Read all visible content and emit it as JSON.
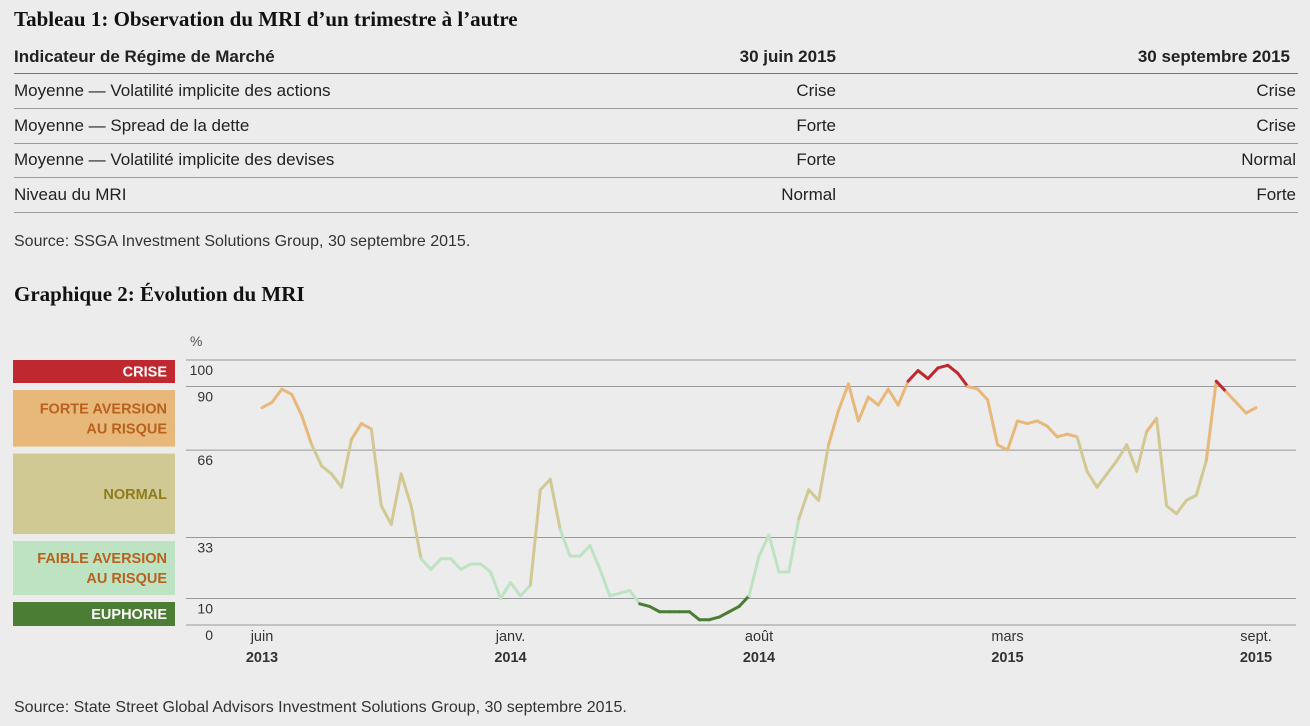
{
  "table": {
    "title": "Tableau 1: Observation du MRI d’un trimestre à l’autre",
    "header": [
      "Indicateur de Régime de Marché",
      "30 juin 2015",
      "30 septembre 2015"
    ],
    "rows": [
      [
        "Moyenne — Volatilité implicite des actions",
        "Crise",
        "Crise"
      ],
      [
        "Moyenne — Spread de la dette",
        "Forte",
        "Crise"
      ],
      [
        "Moyenne — Volatilité implicite des devises",
        "Forte",
        "Normal"
      ],
      [
        "Niveau du MRI",
        "Normal",
        "Forte"
      ]
    ],
    "source": "Source: SSGA Investment Solutions Group, 30 septembre 2015."
  },
  "chart_data": {
    "type": "line",
    "title": "Graphique 2: Évolution du MRI",
    "y_unit": "%",
    "ylim": [
      0,
      100
    ],
    "yticks": [
      0,
      10,
      33,
      66,
      90,
      100
    ],
    "regimes": [
      {
        "label": [
          "CRISE"
        ],
        "min": 90,
        "max": 100,
        "color": "#c0282f",
        "text_color": "#ffffff"
      },
      {
        "label": [
          "FORTE AVERSION",
          "AU RISQUE"
        ],
        "min": 66,
        "max": 90,
        "color": "#e8b87a",
        "text_color": "#b8621e"
      },
      {
        "label": [
          "NORMAL"
        ],
        "min": 33,
        "max": 66,
        "color": "#d1c993",
        "text_color": "#8c7c1c"
      },
      {
        "label": [
          "FAIBLE AVERSION",
          "AU RISQUE"
        ],
        "min": 10,
        "max": 33,
        "color": "#bde3c2",
        "text_color": "#b8621e"
      },
      {
        "label": [
          "EUPHORIE"
        ],
        "min": 0,
        "max": 10,
        "color": "#4b7d34",
        "text_color": "#ffffff"
      }
    ],
    "categories": [
      [
        "juin",
        "2013"
      ],
      null,
      null,
      null,
      null,
      null,
      null,
      null,
      null,
      null,
      null,
      null,
      null,
      null,
      null,
      null,
      null,
      null,
      null,
      null,
      null,
      null,
      null,
      null,
      null,
      [
        "janv.",
        "2014"
      ],
      null,
      null,
      null,
      null,
      null,
      null,
      null,
      null,
      null,
      null,
      null,
      null,
      null,
      null,
      null,
      null,
      null,
      null,
      null,
      null,
      null,
      null,
      null,
      null,
      [
        "août",
        "2014"
      ],
      null,
      null,
      null,
      null,
      null,
      null,
      null,
      null,
      null,
      null,
      null,
      null,
      null,
      null,
      null,
      null,
      null,
      null,
      null,
      null,
      null,
      null,
      null,
      null,
      [
        "mars",
        "2015"
      ],
      null,
      null,
      null,
      null,
      null,
      null,
      null,
      null,
      null,
      null,
      null,
      null,
      null,
      null,
      null,
      null,
      null,
      null,
      null,
      null,
      null,
      null,
      null,
      null,
      [
        "sept.",
        "2015"
      ]
    ],
    "values": [
      82,
      84,
      89,
      87,
      79,
      68,
      60,
      57,
      52,
      70,
      76,
      74,
      45,
      38,
      57,
      45,
      25,
      21,
      25,
      25,
      21,
      23,
      23,
      20,
      10,
      16,
      11,
      15,
      51,
      55,
      36,
      26,
      26,
      30,
      21,
      11,
      12,
      13,
      8,
      7,
      5,
      5,
      5,
      5,
      2,
      2,
      3,
      5,
      7,
      11,
      26,
      34,
      20,
      20,
      40,
      51,
      47,
      68,
      81,
      91,
      77,
      86,
      83,
      89,
      83,
      92,
      96,
      93,
      97,
      98,
      95,
      90,
      89,
      85,
      68,
      66,
      77,
      76,
      77,
      75,
      71,
      72,
      71,
      58,
      52,
      57,
      62,
      68,
      58,
      73,
      78,
      45,
      42,
      47,
      49,
      62,
      92,
      88,
      84,
      80,
      82
    ],
    "source": "Source: State Street Global Advisors Investment Solutions Group, 30 septembre 2015."
  }
}
